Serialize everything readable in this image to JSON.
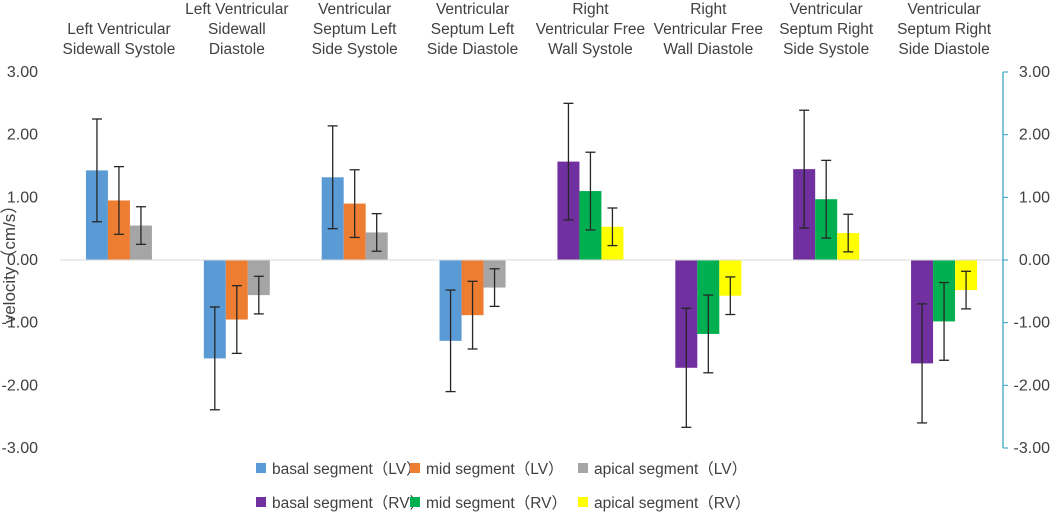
{
  "chart_data": {
    "type": "bar",
    "title": "",
    "xlabel": "",
    "ylabel": "velocity（cm/s）",
    "ylim": [
      -3,
      3
    ],
    "yticks": [
      3,
      2,
      1,
      0,
      -1,
      -2,
      -3
    ],
    "ytick_labels": [
      "3.00",
      "2.00",
      "1.00",
      "0.00",
      "-1.00",
      "-2.00",
      "-3.00"
    ],
    "secondary_yticks": [
      3,
      2,
      1,
      0,
      -1,
      -2,
      -3
    ],
    "secondary_ytick_labels": [
      "3.00",
      "2.00",
      "1.00",
      "0.00",
      "-1.00",
      "-2.00",
      "-3.00"
    ],
    "grid": false,
    "legend_position": "bottom",
    "categories": [
      [
        "Left Ventricular",
        "Sidewall Systole"
      ],
      [
        "Left Ventricular",
        "Sidewall",
        "Diastole"
      ],
      [
        "Ventricular",
        "Septum Left",
        "Side Systole"
      ],
      [
        "Ventricular",
        "Septum Left",
        "Side Diastole"
      ],
      [
        "Right",
        "Ventricular Free",
        "Wall Systole"
      ],
      [
        "Right",
        "Ventricular Free",
        "Wall Diastole"
      ],
      [
        "Ventricular",
        "Septum Right",
        "Side Systole"
      ],
      [
        "Ventricular",
        "Septum Right",
        "Side Diastole"
      ]
    ],
    "series": [
      {
        "name": "basal segment（LV）",
        "color": "#5b9bd5",
        "values": [
          1.43,
          -1.57,
          1.32,
          -1.29,
          null,
          null,
          null,
          null
        ],
        "errors": [
          0.82,
          0.82,
          0.82,
          0.81,
          null,
          null,
          null,
          null
        ]
      },
      {
        "name": "mid segment（LV）",
        "color": "#ed7d31",
        "values": [
          0.95,
          -0.95,
          0.9,
          -0.88,
          null,
          null,
          null,
          null
        ],
        "errors": [
          0.54,
          0.54,
          0.54,
          0.54,
          null,
          null,
          null,
          null
        ]
      },
      {
        "name": "apical segment（LV）",
        "color": "#a5a5a5",
        "values": [
          0.55,
          -0.56,
          0.44,
          -0.44,
          null,
          null,
          null,
          null
        ],
        "errors": [
          0.3,
          0.3,
          0.3,
          0.3,
          null,
          null,
          null,
          null
        ]
      },
      {
        "name": "basal segment（RV）",
        "color": "#7030a0",
        "values": [
          null,
          null,
          null,
          null,
          1.57,
          -1.72,
          1.45,
          -1.65
        ],
        "errors": [
          null,
          null,
          null,
          null,
          0.93,
          0.95,
          0.94,
          0.95
        ]
      },
      {
        "name": "mid segment（RV）",
        "color": "#00b050",
        "values": [
          null,
          null,
          null,
          null,
          1.1,
          -1.18,
          0.97,
          -0.98
        ],
        "errors": [
          null,
          null,
          null,
          null,
          0.62,
          0.62,
          0.62,
          0.62
        ]
      },
      {
        "name": "apical segment（RV）",
        "color": "#ffff00",
        "values": [
          null,
          null,
          null,
          null,
          0.53,
          -0.57,
          0.43,
          -0.48
        ],
        "errors": [
          null,
          null,
          null,
          null,
          0.3,
          0.3,
          0.3,
          0.3
        ]
      }
    ],
    "axis_color": "#d9d9d9",
    "secondary_axis_color": "#2e9bc4",
    "error_color": "#262626"
  }
}
